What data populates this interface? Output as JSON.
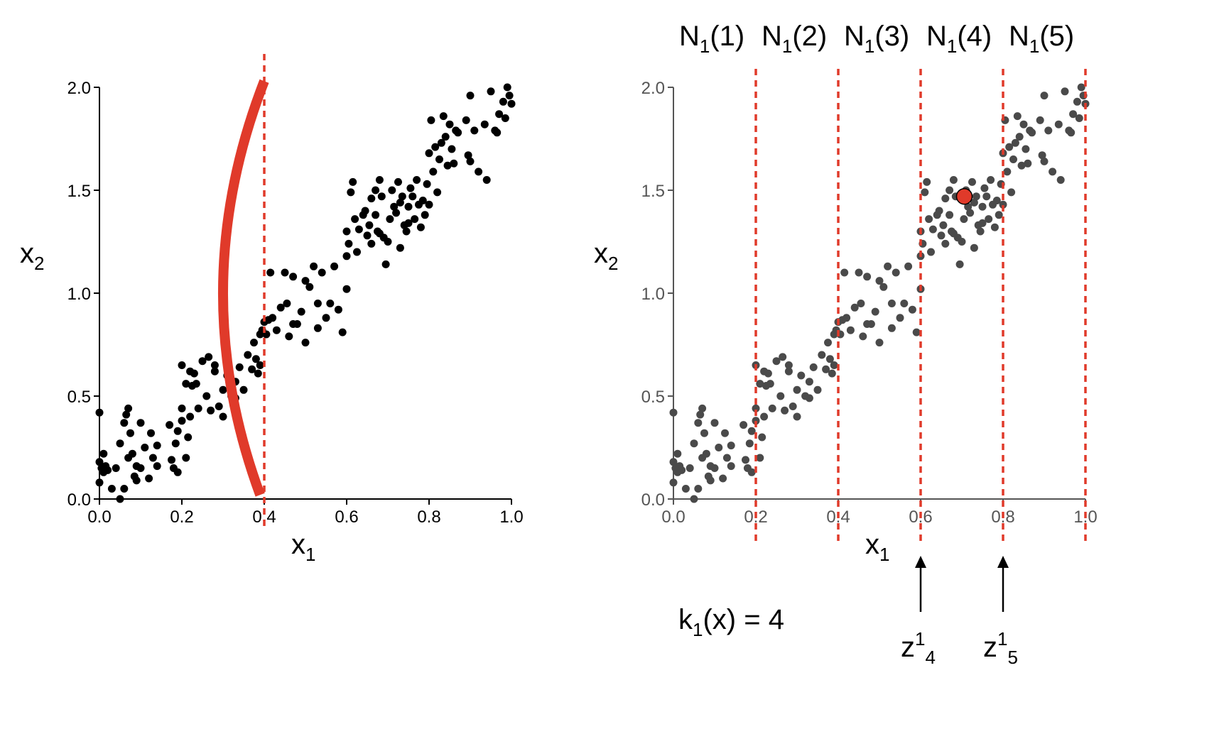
{
  "chart_data": [
    {
      "type": "scatter",
      "title": "",
      "xlabel": "x",
      "xlabel_sub": "1",
      "ylabel": "x",
      "ylabel_sub": "2",
      "xlim": [
        0,
        1
      ],
      "ylim": [
        0,
        2
      ],
      "xticks": [
        "0.0",
        "0.2",
        "0.4",
        "0.6",
        "0.8",
        "1.0"
      ],
      "yticks": [
        "0.0",
        "0.5",
        "1.0",
        "1.5",
        "2.0"
      ],
      "point_color": "#000000",
      "split_line": {
        "x": 0.4,
        "color": "#e03a2a",
        "style": "dashed"
      },
      "arc": {
        "color": "#e03a2a",
        "from": [
          0.4,
          2.03
        ],
        "to": [
          0.39,
          0.02
        ],
        "apex_x": 0.3
      }
    },
    {
      "type": "scatter",
      "title": "",
      "xlabel": "x",
      "xlabel_sub": "1",
      "ylabel": "x",
      "ylabel_sub": "2",
      "xlim": [
        0,
        1
      ],
      "ylim": [
        0,
        2
      ],
      "xticks": [
        "0.0",
        "0.2",
        "0.4",
        "0.6",
        "0.8",
        "1.0"
      ],
      "yticks": [
        "0.0",
        "0.5",
        "1.0",
        "1.5",
        "2.0"
      ],
      "point_color": "#4a4a4a",
      "boundaries": [
        0.2,
        0.4,
        0.6,
        0.8,
        1.0
      ],
      "boundary_color": "#e03a2a",
      "bins": [
        {
          "label": "N",
          "sub": "1",
          "arg": "(1)",
          "center": 0.1
        },
        {
          "label": "N",
          "sub": "1",
          "arg": "(2)",
          "center": 0.3
        },
        {
          "label": "N",
          "sub": "1",
          "arg": "(3)",
          "center": 0.5
        },
        {
          "label": "N",
          "sub": "1",
          "arg": "(4)",
          "center": 0.7
        },
        {
          "label": "N",
          "sub": "1",
          "arg": "(5)",
          "center": 0.9
        }
      ],
      "highlight_point": {
        "x": 0.706,
        "y": 1.47,
        "color": "#e03a2a"
      },
      "k_label": {
        "main": "k",
        "sub": "1",
        "rest": "(x) = 4"
      },
      "arrows": [
        {
          "x": 0.6,
          "main": "z",
          "sup": "1",
          "sub": "4"
        },
        {
          "x": 0.8,
          "main": "z",
          "sup": "1",
          "sub": "5"
        }
      ]
    }
  ],
  "points": [
    [
      0.0,
      0.42
    ],
    [
      0.0,
      0.18
    ],
    [
      0.0,
      0.08
    ],
    [
      0.005,
      0.15
    ],
    [
      0.01,
      0.22
    ],
    [
      0.01,
      0.13
    ],
    [
      0.015,
      0.16
    ],
    [
      0.02,
      0.14
    ],
    [
      0.03,
      0.05
    ],
    [
      0.04,
      0.15
    ],
    [
      0.05,
      0.0
    ],
    [
      0.05,
      0.27
    ],
    [
      0.06,
      0.37
    ],
    [
      0.06,
      0.05
    ],
    [
      0.065,
      0.41
    ],
    [
      0.07,
      0.44
    ],
    [
      0.07,
      0.2
    ],
    [
      0.075,
      0.32
    ],
    [
      0.08,
      0.22
    ],
    [
      0.085,
      0.11
    ],
    [
      0.09,
      0.16
    ],
    [
      0.09,
      0.09
    ],
    [
      0.1,
      0.15
    ],
    [
      0.1,
      0.37
    ],
    [
      0.11,
      0.25
    ],
    [
      0.12,
      0.1
    ],
    [
      0.125,
      0.32
    ],
    [
      0.13,
      0.2
    ],
    [
      0.14,
      0.26
    ],
    [
      0.14,
      0.16
    ],
    [
      0.17,
      0.36
    ],
    [
      0.175,
      0.19
    ],
    [
      0.18,
      0.15
    ],
    [
      0.185,
      0.27
    ],
    [
      0.19,
      0.13
    ],
    [
      0.19,
      0.33
    ],
    [
      0.2,
      0.38
    ],
    [
      0.2,
      0.44
    ],
    [
      0.22,
      0.4
    ],
    [
      0.215,
      0.3
    ],
    [
      0.21,
      0.2
    ],
    [
      0.2,
      0.65
    ],
    [
      0.21,
      0.56
    ],
    [
      0.22,
      0.62
    ],
    [
      0.225,
      0.55
    ],
    [
      0.23,
      0.61
    ],
    [
      0.235,
      0.56
    ],
    [
      0.24,
      0.44
    ],
    [
      0.25,
      0.67
    ],
    [
      0.26,
      0.5
    ],
    [
      0.265,
      0.69
    ],
    [
      0.27,
      0.43
    ],
    [
      0.28,
      0.65
    ],
    [
      0.29,
      0.45
    ],
    [
      0.3,
      0.53
    ],
    [
      0.3,
      0.4
    ],
    [
      0.31,
      0.6
    ],
    [
      0.32,
      0.5
    ],
    [
      0.33,
      0.57
    ],
    [
      0.34,
      0.64
    ],
    [
      0.35,
      0.53
    ],
    [
      0.36,
      0.7
    ],
    [
      0.37,
      0.63
    ],
    [
      0.375,
      0.76
    ],
    [
      0.38,
      0.68
    ],
    [
      0.385,
      0.61
    ],
    [
      0.39,
      0.65
    ],
    [
      0.39,
      0.8
    ],
    [
      0.395,
      0.82
    ],
    [
      0.28,
      0.62
    ],
    [
      0.33,
      0.49
    ],
    [
      0.4,
      0.86
    ],
    [
      0.405,
      0.8
    ],
    [
      0.41,
      0.87
    ],
    [
      0.415,
      1.1
    ],
    [
      0.42,
      0.88
    ],
    [
      0.43,
      0.82
    ],
    [
      0.44,
      0.93
    ],
    [
      0.45,
      1.1
    ],
    [
      0.46,
      0.79
    ],
    [
      0.47,
      1.08
    ],
    [
      0.48,
      0.85
    ],
    [
      0.49,
      0.91
    ],
    [
      0.5,
      1.06
    ],
    [
      0.5,
      0.76
    ],
    [
      0.51,
      1.03
    ],
    [
      0.52,
      1.13
    ],
    [
      0.53,
      0.95
    ],
    [
      0.53,
      0.83
    ],
    [
      0.54,
      1.1
    ],
    [
      0.55,
      0.88
    ],
    [
      0.56,
      0.95
    ],
    [
      0.57,
      1.13
    ],
    [
      0.58,
      0.92
    ],
    [
      0.59,
      0.81
    ],
    [
      0.6,
      1.18
    ],
    [
      0.6,
      1.02
    ],
    [
      0.455,
      0.95
    ],
    [
      0.47,
      0.85
    ],
    [
      0.6,
      1.3
    ],
    [
      0.605,
      1.24
    ],
    [
      0.61,
      1.49
    ],
    [
      0.615,
      1.54
    ],
    [
      0.62,
      1.36
    ],
    [
      0.625,
      1.2
    ],
    [
      0.63,
      1.31
    ],
    [
      0.64,
      1.38
    ],
    [
      0.645,
      1.4
    ],
    [
      0.65,
      1.28
    ],
    [
      0.655,
      1.33
    ],
    [
      0.66,
      1.24
    ],
    [
      0.67,
      1.5
    ],
    [
      0.67,
      1.38
    ],
    [
      0.675,
      1.3
    ],
    [
      0.68,
      1.55
    ],
    [
      0.685,
      1.47
    ],
    [
      0.69,
      1.27
    ],
    [
      0.695,
      1.14
    ],
    [
      0.7,
      1.25
    ],
    [
      0.705,
      1.36
    ],
    [
      0.71,
      1.5
    ],
    [
      0.715,
      1.42
    ],
    [
      0.72,
      1.39
    ],
    [
      0.725,
      1.54
    ],
    [
      0.73,
      1.22
    ],
    [
      0.735,
      1.47
    ],
    [
      0.74,
      1.33
    ],
    [
      0.745,
      1.3
    ],
    [
      0.75,
      1.42
    ],
    [
      0.755,
      1.51
    ],
    [
      0.76,
      1.47
    ],
    [
      0.765,
      1.36
    ],
    [
      0.77,
      1.55
    ],
    [
      0.775,
      1.43
    ],
    [
      0.78,
      1.32
    ],
    [
      0.785,
      1.45
    ],
    [
      0.79,
      1.38
    ],
    [
      0.795,
      1.53
    ],
    [
      0.8,
      1.43
    ],
    [
      0.66,
      1.46
    ],
    [
      0.68,
      1.29
    ],
    [
      0.75,
      1.34
    ],
    [
      0.73,
      1.44
    ],
    [
      0.8,
      1.68
    ],
    [
      0.805,
      1.84
    ],
    [
      0.81,
      1.59
    ],
    [
      0.815,
      1.71
    ],
    [
      0.82,
      1.49
    ],
    [
      0.825,
      1.65
    ],
    [
      0.83,
      1.73
    ],
    [
      0.835,
      1.86
    ],
    [
      0.84,
      1.76
    ],
    [
      0.845,
      1.62
    ],
    [
      0.85,
      1.82
    ],
    [
      0.855,
      1.7
    ],
    [
      0.86,
      1.63
    ],
    [
      0.865,
      1.79
    ],
    [
      0.87,
      1.78
    ],
    [
      0.89,
      1.84
    ],
    [
      0.9,
      1.96
    ],
    [
      0.9,
      1.64
    ],
    [
      0.895,
      1.67
    ],
    [
      0.91,
      1.79
    ],
    [
      0.92,
      1.59
    ],
    [
      0.935,
      1.82
    ],
    [
      0.94,
      1.55
    ],
    [
      0.95,
      1.98
    ],
    [
      0.96,
      1.79
    ],
    [
      0.97,
      1.87
    ],
    [
      0.98,
      1.93
    ],
    [
      0.985,
      1.85
    ],
    [
      0.99,
      2.0
    ],
    [
      0.995,
      1.96
    ],
    [
      1.0,
      1.92
    ],
    [
      0.965,
      1.78
    ]
  ]
}
